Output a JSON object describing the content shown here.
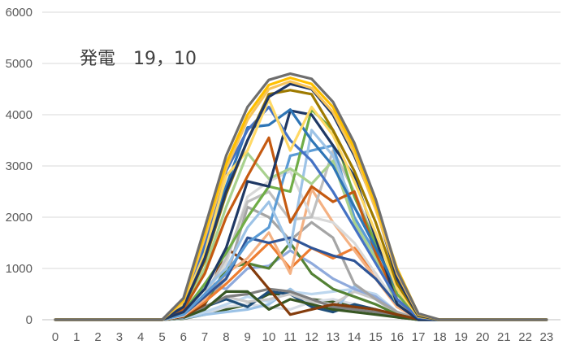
{
  "chart_data": {
    "type": "line",
    "title": "発電　19，10",
    "xlabel": "",
    "ylabel": "",
    "x": [
      0,
      1,
      2,
      3,
      4,
      5,
      6,
      7,
      8,
      9,
      10,
      11,
      12,
      13,
      14,
      15,
      16,
      17,
      18,
      19,
      20,
      21,
      22,
      23
    ],
    "ylim": [
      0,
      6000
    ],
    "yticks": [
      0,
      1000,
      2000,
      3000,
      4000,
      5000,
      6000
    ],
    "grid": "horizontal",
    "legend": "none",
    "series": [
      {
        "color": "#6e6e6e",
        "values": [
          0,
          0,
          0,
          0,
          0,
          0,
          420,
          1800,
          3200,
          4150,
          4680,
          4800,
          4700,
          4250,
          3450,
          2350,
          950,
          120,
          0,
          0,
          0,
          0,
          0,
          0
        ]
      },
      {
        "color": "#ffc000",
        "values": [
          0,
          0,
          0,
          0,
          0,
          0,
          380,
          1700,
          3050,
          4000,
          4580,
          4720,
          4600,
          4150,
          3350,
          2250,
          1000,
          110,
          0,
          0,
          0,
          0,
          0,
          0
        ]
      },
      {
        "color": "#f6c35a",
        "values": [
          0,
          0,
          0,
          0,
          0,
          0,
          350,
          1600,
          2950,
          3900,
          4500,
          4650,
          4520,
          4050,
          3250,
          2150,
          900,
          100,
          0,
          0,
          0,
          0,
          0,
          0
        ]
      },
      {
        "color": "#203864",
        "values": [
          0,
          0,
          0,
          0,
          0,
          0,
          250,
          1200,
          2500,
          3500,
          4350,
          4600,
          4500,
          4000,
          3200,
          2200,
          800,
          80,
          0,
          0,
          0,
          0,
          0,
          0
        ]
      },
      {
        "color": "#9e7a00",
        "values": [
          0,
          0,
          0,
          0,
          0,
          0,
          250,
          1150,
          2450,
          3500,
          4400,
          4480,
          4400,
          3700,
          2900,
          1900,
          700,
          70,
          0,
          0,
          0,
          0,
          0,
          0
        ]
      },
      {
        "color": "#ffd966",
        "values": [
          0,
          0,
          0,
          0,
          0,
          0,
          300,
          1300,
          2800,
          3300,
          4300,
          3300,
          4150,
          3600,
          2700,
          1700,
          600,
          60,
          0,
          0,
          0,
          0,
          0,
          0
        ]
      },
      {
        "color": "#4472c4",
        "values": [
          0,
          0,
          0,
          0,
          0,
          0,
          300,
          1500,
          2900,
          3700,
          4150,
          3500,
          3100,
          2500,
          1800,
          1100,
          400,
          40,
          0,
          0,
          0,
          0,
          0,
          0
        ]
      },
      {
        "color": "#2e75b6",
        "values": [
          0,
          0,
          0,
          0,
          0,
          0,
          250,
          1400,
          2600,
          3750,
          3800,
          4100,
          3500,
          3000,
          2200,
          1400,
          600,
          50,
          0,
          0,
          0,
          0,
          0,
          0
        ]
      },
      {
        "color": "#1f3864",
        "values": [
          0,
          0,
          0,
          0,
          0,
          0,
          150,
          600,
          1400,
          2700,
          2600,
          4080,
          4000,
          3400,
          2800,
          1600,
          300,
          0,
          0,
          0,
          0,
          0,
          0,
          0
        ]
      },
      {
        "color": "#c55a11",
        "values": [
          0,
          0,
          0,
          0,
          0,
          0,
          200,
          900,
          2000,
          2800,
          3550,
          1900,
          2600,
          2300,
          2500,
          1300,
          400,
          30,
          0,
          0,
          0,
          0,
          0,
          0
        ]
      },
      {
        "color": "#a9d18e",
        "values": [
          0,
          0,
          0,
          0,
          0,
          0,
          200,
          1000,
          2200,
          3250,
          2750,
          2950,
          2650,
          3100,
          1900,
          1200,
          300,
          30,
          0,
          0,
          0,
          0,
          0,
          0
        ]
      },
      {
        "color": "#70ad47",
        "values": [
          0,
          0,
          0,
          0,
          0,
          0,
          150,
          700,
          1300,
          2000,
          2600,
          2500,
          4100,
          3700,
          2400,
          1500,
          500,
          40,
          0,
          0,
          0,
          0,
          0,
          0
        ]
      },
      {
        "color": "#9dc3e6",
        "values": [
          0,
          0,
          0,
          0,
          0,
          0,
          150,
          600,
          1000,
          1800,
          2300,
          1400,
          3700,
          3200,
          2200,
          1500,
          400,
          30,
          0,
          0,
          0,
          0,
          0,
          0
        ]
      },
      {
        "color": "#5b9bd5",
        "values": [
          0,
          0,
          0,
          0,
          0,
          0,
          100,
          500,
          900,
          1500,
          1800,
          3200,
          3300,
          3400,
          2000,
          1300,
          350,
          30,
          0,
          0,
          0,
          0,
          0,
          0
        ]
      },
      {
        "color": "#2f5597",
        "values": [
          0,
          0,
          0,
          0,
          0,
          0,
          100,
          450,
          800,
          1600,
          1500,
          1600,
          1400,
          1250,
          1150,
          800,
          300,
          20,
          0,
          0,
          0,
          0,
          0,
          0
        ]
      },
      {
        "color": "#bfbfbf",
        "values": [
          0,
          0,
          0,
          0,
          0,
          0,
          100,
          500,
          1200,
          2300,
          2500,
          1950,
          2000,
          3300,
          2500,
          1500,
          400,
          30,
          0,
          0,
          0,
          0,
          0,
          0
        ]
      },
      {
        "color": "#d9d9d9",
        "values": [
          0,
          0,
          0,
          0,
          0,
          0,
          80,
          500,
          1100,
          2400,
          2700,
          2900,
          2000,
          1900,
          1500,
          900,
          300,
          20,
          0,
          0,
          0,
          0,
          0,
          0
        ]
      },
      {
        "color": "#f4b183",
        "values": [
          0,
          0,
          0,
          0,
          0,
          0,
          80,
          400,
          900,
          1200,
          1700,
          900,
          2550,
          1900,
          1350,
          800,
          250,
          20,
          0,
          0,
          0,
          0,
          0,
          0
        ]
      },
      {
        "color": "#ed7d31",
        "values": [
          0,
          0,
          0,
          0,
          0,
          0,
          80,
          350,
          700,
          1100,
          1500,
          1000,
          1400,
          1200,
          1400,
          900,
          250,
          20,
          0,
          0,
          0,
          0,
          0,
          0
        ]
      },
      {
        "color": "#843c0c",
        "values": [
          0,
          0,
          0,
          0,
          0,
          0,
          60,
          300,
          1400,
          1100,
          600,
          100,
          200,
          300,
          250,
          200,
          100,
          10,
          0,
          0,
          0,
          0,
          0,
          0
        ]
      },
      {
        "color": "#548235",
        "values": [
          0,
          0,
          0,
          0,
          0,
          0,
          60,
          300,
          1000,
          1100,
          1000,
          1500,
          900,
          600,
          450,
          300,
          100,
          10,
          0,
          0,
          0,
          0,
          0,
          0
        ]
      },
      {
        "color": "#a5a5a5",
        "values": [
          0,
          0,
          0,
          0,
          0,
          0,
          60,
          350,
          800,
          2200,
          2000,
          1550,
          1900,
          1600,
          700,
          400,
          150,
          10,
          0,
          0,
          0,
          0,
          0,
          0
        ]
      },
      {
        "color": "#8faadc",
        "values": [
          0,
          0,
          0,
          0,
          0,
          0,
          50,
          700,
          600,
          1000,
          1050,
          1350,
          1100,
          800,
          600,
          450,
          150,
          10,
          0,
          0,
          0,
          0,
          0,
          0
        ]
      },
      {
        "color": "#375623",
        "values": [
          0,
          0,
          0,
          0,
          0,
          0,
          40,
          200,
          550,
          550,
          200,
          400,
          300,
          200,
          150,
          100,
          50,
          0,
          0,
          0,
          0,
          0,
          0,
          0
        ]
      },
      {
        "color": "#7f7f7f",
        "values": [
          0,
          0,
          0,
          0,
          0,
          0,
          40,
          250,
          450,
          500,
          600,
          550,
          400,
          250,
          200,
          150,
          50,
          0,
          0,
          0,
          0,
          0,
          0,
          0
        ]
      },
      {
        "color": "#c9c9c9",
        "values": [
          0,
          0,
          0,
          0,
          0,
          0,
          40,
          250,
          450,
          350,
          400,
          500,
          350,
          300,
          550,
          400,
          100,
          0,
          0,
          0,
          0,
          0,
          0,
          0
        ]
      },
      {
        "color": "#1f4e79",
        "values": [
          0,
          0,
          0,
          0,
          0,
          0,
          40,
          250,
          400,
          250,
          550,
          500,
          250,
          150,
          300,
          200,
          60,
          0,
          0,
          0,
          0,
          0,
          0,
          0
        ]
      },
      {
        "color": "#bdd7ee",
        "values": [
          0,
          0,
          0,
          0,
          0,
          0,
          30,
          150,
          300,
          450,
          350,
          550,
          500,
          550,
          600,
          500,
          150,
          0,
          0,
          0,
          0,
          0,
          0,
          0
        ]
      },
      {
        "color": "#9bc2e6",
        "values": [
          0,
          0,
          0,
          0,
          0,
          0,
          30,
          100,
          150,
          200,
          300,
          600,
          300,
          150,
          650,
          400,
          100,
          0,
          0,
          0,
          0,
          0,
          0,
          0
        ]
      },
      {
        "color": "#d6dce5",
        "values": [
          0,
          0,
          0,
          0,
          0,
          0,
          30,
          120,
          250,
          300,
          250,
          200,
          350,
          400,
          300,
          200,
          60,
          0,
          0,
          0,
          0,
          0,
          0,
          0
        ]
      },
      {
        "color": "#385723",
        "values": [
          0,
          0,
          0,
          0,
          0,
          0,
          20,
          100,
          200,
          300,
          500,
          500,
          400,
          350,
          300,
          200,
          50,
          0,
          0,
          0,
          0,
          0,
          0,
          0
        ]
      }
    ]
  }
}
